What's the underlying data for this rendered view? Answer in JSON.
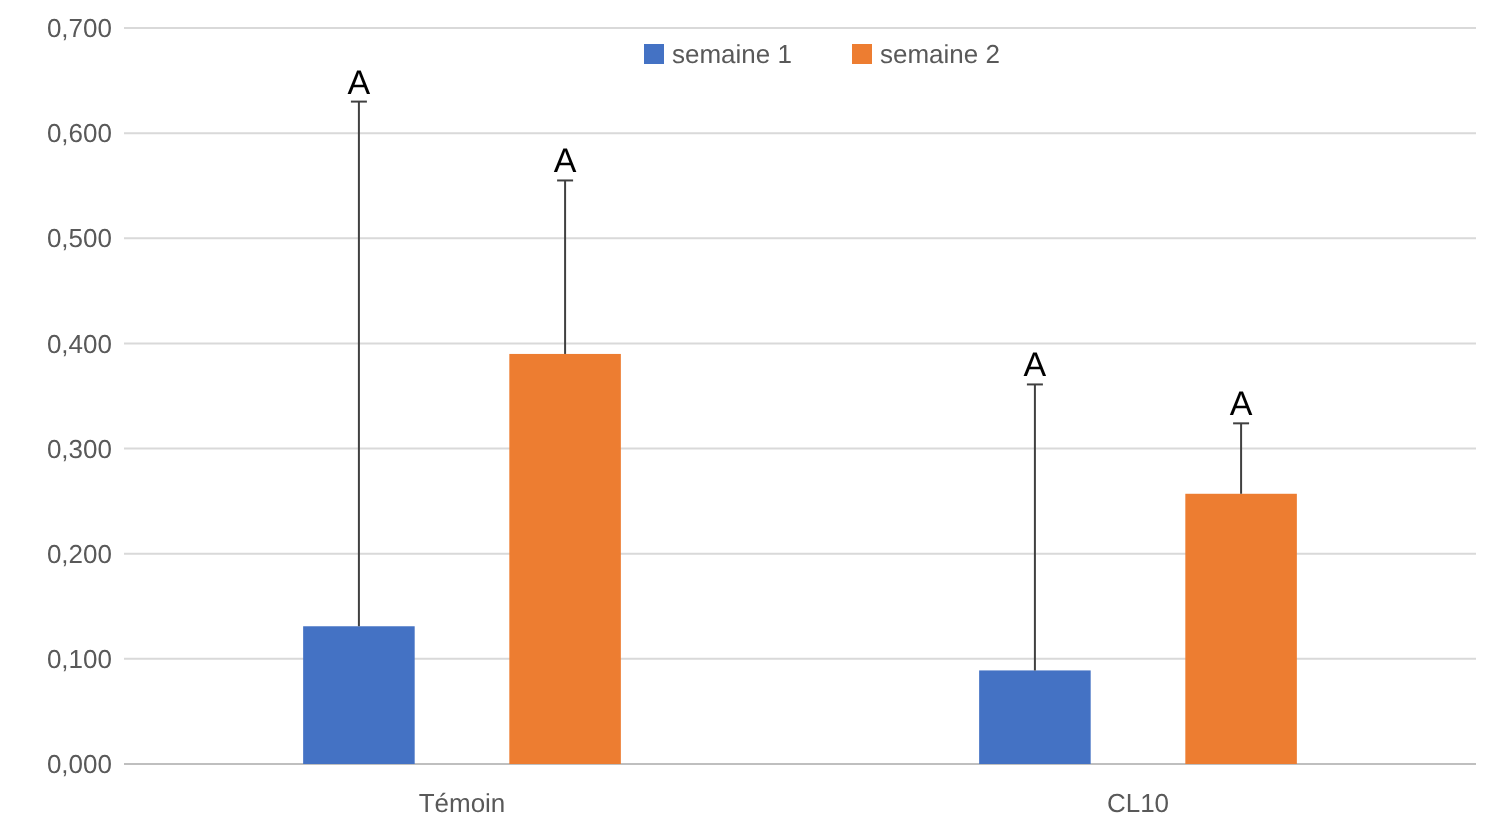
{
  "chart_data": {
    "type": "bar",
    "categories": [
      "Témoin",
      "CL10"
    ],
    "series": [
      {
        "name": "semaine 1",
        "color": "#4472c4",
        "values": [
          0.131,
          0.089
        ],
        "errors": [
          [
            0.131,
            0.63
          ],
          [
            0.089,
            0.361
          ]
        ]
      },
      {
        "name": "semaine 2",
        "color": "#ed7d31",
        "values": [
          0.39,
          0.257
        ],
        "errors": [
          [
            0.39,
            0.555
          ],
          [
            0.257,
            0.324
          ]
        ]
      }
    ],
    "ylim": [
      0,
      0.7
    ],
    "yticks": [
      {
        "value": 0,
        "label": "0,000"
      },
      {
        "value": 0.1,
        "label": "0,100"
      },
      {
        "value": 0.2,
        "label": "0,200"
      },
      {
        "value": 0.3,
        "label": "0,300"
      },
      {
        "value": 0.4,
        "label": "0,400"
      },
      {
        "value": 0.5,
        "label": "0,500"
      },
      {
        "value": 0.6,
        "label": "0,600"
      },
      {
        "value": 0.7,
        "label": "0,700"
      }
    ],
    "grid": "y",
    "legend": "top",
    "annotations": [
      "A",
      "A",
      "A",
      "A"
    ]
  }
}
